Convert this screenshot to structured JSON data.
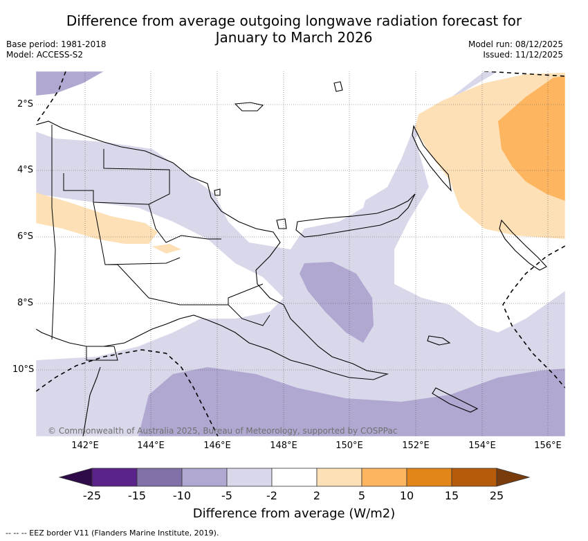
{
  "title": "Difference from average outgoing longwave radiation forecast for January to March 2026",
  "title_line1": "Difference from average outgoing longwave radiation forecast for",
  "title_line2": "January to March 2026",
  "base_period": "Base period: 1981-2018",
  "model": "Model: ACCESS-S2",
  "model_run": "Model run: 08/12/2025",
  "issued": "Issued: 11/12/2025",
  "copyright": "© Commonwealth of Australia 2025, Bureau of Meteorology, supported by COSPPac",
  "map": {
    "lon_range": [
      140.6,
      156.5
    ],
    "lat_range": [
      -12.0,
      -1.0
    ],
    "x_ticks": [
      "142°E",
      "144°E",
      "146°E",
      "148°E",
      "150°E",
      "152°E",
      "154°E",
      "156°E"
    ],
    "x_tick_values": [
      142,
      144,
      146,
      148,
      150,
      152,
      154,
      156
    ],
    "y_ticks": [
      "2°S",
      "4°S",
      "6°S",
      "8°S",
      "10°S"
    ],
    "y_tick_values": [
      -2,
      -4,
      -6,
      -8,
      -10
    ]
  },
  "colorbar": {
    "title": "Difference from average (W/m2)",
    "labels": [
      "-25",
      "-15",
      "-10",
      "-5",
      "-2",
      "2",
      "5",
      "10",
      "15",
      "25"
    ],
    "colors": [
      "#5a2389",
      "#8270a9",
      "#b0a8d1",
      "#d9d8ea",
      "#ffffff",
      "#fde0b6",
      "#fdb560",
      "#e3861a",
      "#b55b0a"
    ],
    "under_color": "#2f0b4a",
    "over_color": "#7a3c0a"
  },
  "footnote": "--  --  -- EEZ border V11 (Flanders Marine Institute, 2019)."
}
